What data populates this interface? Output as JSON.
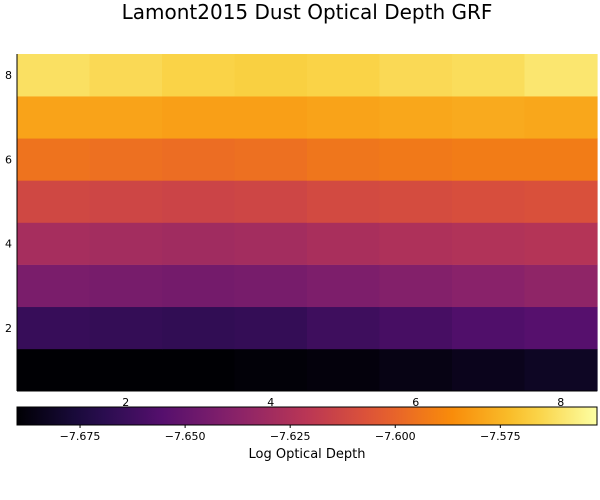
{
  "chart_data": {
    "type": "heatmap",
    "title": "Lamont2015 Dust Optical Depth GRF",
    "x": [
      1,
      2,
      3,
      4,
      5,
      6,
      7,
      8
    ],
    "y": [
      1,
      2,
      3,
      4,
      5,
      6,
      7,
      8
    ],
    "xlim": [
      0.5,
      8.5
    ],
    "ylim": [
      0.5,
      8.5
    ],
    "x_ticks": [
      2,
      4,
      6,
      8
    ],
    "y_ticks": [
      2,
      4,
      6,
      8
    ],
    "z": [
      [
        -7.69,
        -7.69,
        -7.69,
        -7.689,
        -7.688,
        -7.686,
        -7.684,
        -7.682
      ],
      [
        -7.665,
        -7.666,
        -7.667,
        -7.666,
        -7.663,
        -7.66,
        -7.657,
        -7.655
      ],
      [
        -7.643,
        -7.644,
        -7.645,
        -7.644,
        -7.642,
        -7.64,
        -7.638,
        -7.636
      ],
      [
        -7.628,
        -7.629,
        -7.63,
        -7.629,
        -7.627,
        -7.625,
        -7.624,
        -7.623
      ],
      [
        -7.612,
        -7.613,
        -7.614,
        -7.613,
        -7.611,
        -7.61,
        -7.609,
        -7.608
      ],
      [
        -7.595,
        -7.596,
        -7.597,
        -7.596,
        -7.594,
        -7.593,
        -7.592,
        -7.592
      ],
      [
        -7.58,
        -7.58,
        -7.581,
        -7.581,
        -7.58,
        -7.579,
        -7.578,
        -7.579
      ],
      [
        -7.562,
        -7.564,
        -7.566,
        -7.567,
        -7.566,
        -7.564,
        -7.563,
        -7.56
      ]
    ],
    "colormap": "inferno",
    "colorbar": {
      "orientation": "horizontal",
      "placement": "bottom",
      "label": "Log Optical Depth",
      "range": [
        -7.69,
        -7.552
      ],
      "ticks": [
        -7.675,
        -7.65,
        -7.625,
        -7.6,
        -7.575
      ],
      "tick_labels": [
        "−7.675",
        "−7.650",
        "−7.625",
        "−7.600",
        "−7.575"
      ]
    },
    "grid": false
  }
}
